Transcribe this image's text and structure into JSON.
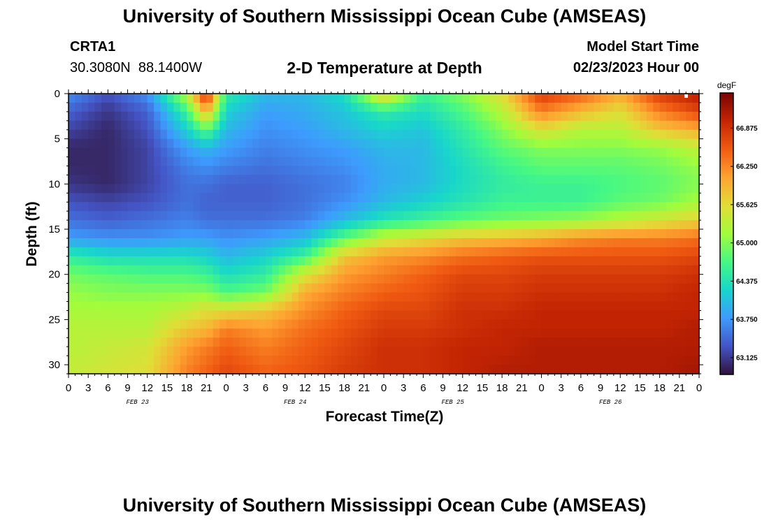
{
  "page": {
    "title": "University of Southern Mississippi Ocean Cube (AMSEAS)",
    "station": {
      "name": "CRTA1",
      "coords": "30.3080N  88.1400W"
    },
    "model_start": {
      "label": "Model Start Time",
      "value": "02/23/2023 Hour 00"
    },
    "repeat_title": "University of Southern Mississippi Ocean Cube (AMSEAS)"
  },
  "chart_data": {
    "type": "heatmap",
    "title": "2-D Temperature at Depth",
    "xlabel": "Forecast Time(Z)",
    "ylabel": "Depth (ft)",
    "x_tick_labels": [
      "0",
      "3",
      "6",
      "9",
      "12",
      "15",
      "18",
      "21",
      "0",
      "3",
      "6",
      "9",
      "12",
      "15",
      "18",
      "21",
      "0",
      "3",
      "6",
      "9",
      "12",
      "15",
      "18",
      "21",
      "0",
      "3",
      "6",
      "9",
      "12",
      "15",
      "18",
      "21",
      "0"
    ],
    "x_range_hours": [
      0,
      96
    ],
    "date_labels": [
      {
        "label": "FEB 23",
        "hour": 10.5
      },
      {
        "label": "FEB 24",
        "hour": 34.5
      },
      {
        "label": "FEB 25",
        "hour": 58.5
      },
      {
        "label": "FEB 26",
        "hour": 82.5
      }
    ],
    "y_ticks": [
      0,
      5,
      10,
      15,
      20,
      25,
      30
    ],
    "ylim": [
      0,
      31
    ],
    "colorbar": {
      "unit": "degF",
      "ticks": [
        "63.125",
        "63.750",
        "64.375",
        "65.000",
        "65.625",
        "66.250",
        "66.875"
      ],
      "vmin": 62.85,
      "vmax": 67.45
    },
    "colormap": [
      "#30123b",
      "#4454c4",
      "#3e9bfe",
      "#18d6cb",
      "#46f884",
      "#a2fc3c",
      "#e1dd37",
      "#fea331",
      "#f05b12",
      "#c42503",
      "#7a0403"
    ],
    "hours": [
      0,
      6,
      12,
      18,
      21,
      24,
      30,
      36,
      42,
      48,
      54,
      60,
      66,
      72,
      78,
      84,
      90,
      96
    ],
    "depths_ft": [
      0,
      2,
      4,
      6,
      8,
      10,
      12,
      14,
      16,
      18,
      20,
      22,
      24,
      26,
      28,
      31
    ],
    "temperature_degF": [
      [
        63.7,
        63.3,
        63.7,
        65.3,
        67.0,
        64.5,
        64.0,
        64.0,
        64.3,
        65.8,
        64.6,
        65.0,
        65.6,
        66.8,
        66.5,
        66.0,
        66.8,
        67.1
      ],
      [
        63.4,
        63.1,
        63.4,
        64.6,
        66.0,
        64.2,
        63.8,
        63.9,
        64.1,
        64.5,
        64.3,
        64.7,
        65.3,
        66.3,
        65.9,
        65.6,
        66.3,
        66.7
      ],
      [
        63.2,
        63.0,
        63.3,
        64.2,
        64.8,
        64.0,
        63.7,
        63.8,
        64.0,
        64.2,
        64.1,
        64.5,
        65.0,
        65.6,
        65.3,
        65.3,
        65.8,
        66.0
      ],
      [
        63.0,
        63.0,
        63.2,
        63.8,
        64.0,
        63.8,
        63.6,
        63.7,
        63.8,
        64.0,
        64.0,
        64.4,
        64.8,
        65.0,
        65.0,
        65.0,
        65.1,
        65.4
      ],
      [
        63.0,
        63.0,
        63.2,
        63.6,
        63.7,
        63.6,
        63.5,
        63.6,
        63.7,
        63.9,
        64.0,
        64.3,
        64.6,
        64.8,
        64.8,
        64.8,
        64.9,
        65.1
      ],
      [
        63.1,
        63.0,
        63.2,
        63.5,
        63.5,
        63.4,
        63.4,
        63.5,
        63.6,
        63.9,
        64.0,
        64.3,
        64.5,
        64.6,
        64.6,
        64.7,
        64.8,
        65.0
      ],
      [
        63.3,
        63.2,
        63.3,
        63.5,
        63.4,
        63.4,
        63.4,
        63.5,
        63.7,
        64.0,
        64.2,
        64.4,
        64.6,
        64.6,
        64.6,
        64.8,
        64.9,
        65.2
      ],
      [
        63.5,
        63.4,
        63.5,
        63.6,
        63.5,
        63.5,
        63.5,
        63.6,
        64.0,
        64.4,
        64.6,
        64.8,
        64.9,
        65.0,
        65.1,
        65.3,
        65.5,
        65.7
      ],
      [
        63.8,
        63.7,
        63.7,
        63.8,
        63.8,
        63.7,
        63.8,
        64.0,
        64.8,
        65.4,
        65.6,
        65.8,
        65.9,
        66.0,
        66.2,
        66.3,
        66.3,
        66.4
      ],
      [
        64.5,
        64.3,
        64.3,
        64.3,
        64.2,
        64.0,
        64.2,
        64.6,
        65.8,
        66.1,
        66.2,
        66.4,
        66.5,
        66.6,
        66.6,
        66.6,
        66.6,
        66.7
      ],
      [
        64.9,
        64.8,
        64.7,
        64.7,
        64.6,
        64.3,
        64.5,
        65.5,
        66.1,
        66.3,
        66.5,
        66.7,
        66.7,
        66.8,
        66.8,
        66.8,
        66.8,
        66.9
      ],
      [
        65.1,
        65.0,
        65.0,
        65.0,
        65.0,
        64.7,
        64.9,
        66.0,
        66.3,
        66.5,
        66.6,
        66.8,
        66.8,
        66.9,
        66.9,
        66.9,
        66.9,
        67.0
      ],
      [
        65.2,
        65.2,
        65.2,
        65.4,
        65.6,
        65.6,
        65.8,
        66.2,
        66.5,
        66.7,
        66.7,
        66.9,
        66.9,
        67.0,
        67.0,
        67.0,
        67.0,
        67.0
      ],
      [
        65.3,
        65.3,
        65.3,
        65.8,
        65.9,
        66.3,
        66.1,
        66.4,
        66.6,
        66.8,
        66.8,
        66.9,
        67.0,
        67.0,
        67.0,
        67.0,
        67.0,
        67.1
      ],
      [
        65.3,
        65.4,
        65.5,
        66.1,
        66.3,
        66.5,
        66.3,
        66.5,
        66.7,
        66.9,
        66.9,
        67.0,
        67.0,
        67.1,
        67.1,
        67.1,
        67.1,
        67.1
      ],
      [
        65.4,
        65.5,
        65.6,
        66.3,
        66.5,
        66.7,
        66.5,
        66.6,
        66.8,
        66.9,
        66.9,
        67.0,
        67.1,
        67.1,
        67.1,
        67.1,
        67.1,
        67.2
      ]
    ]
  }
}
